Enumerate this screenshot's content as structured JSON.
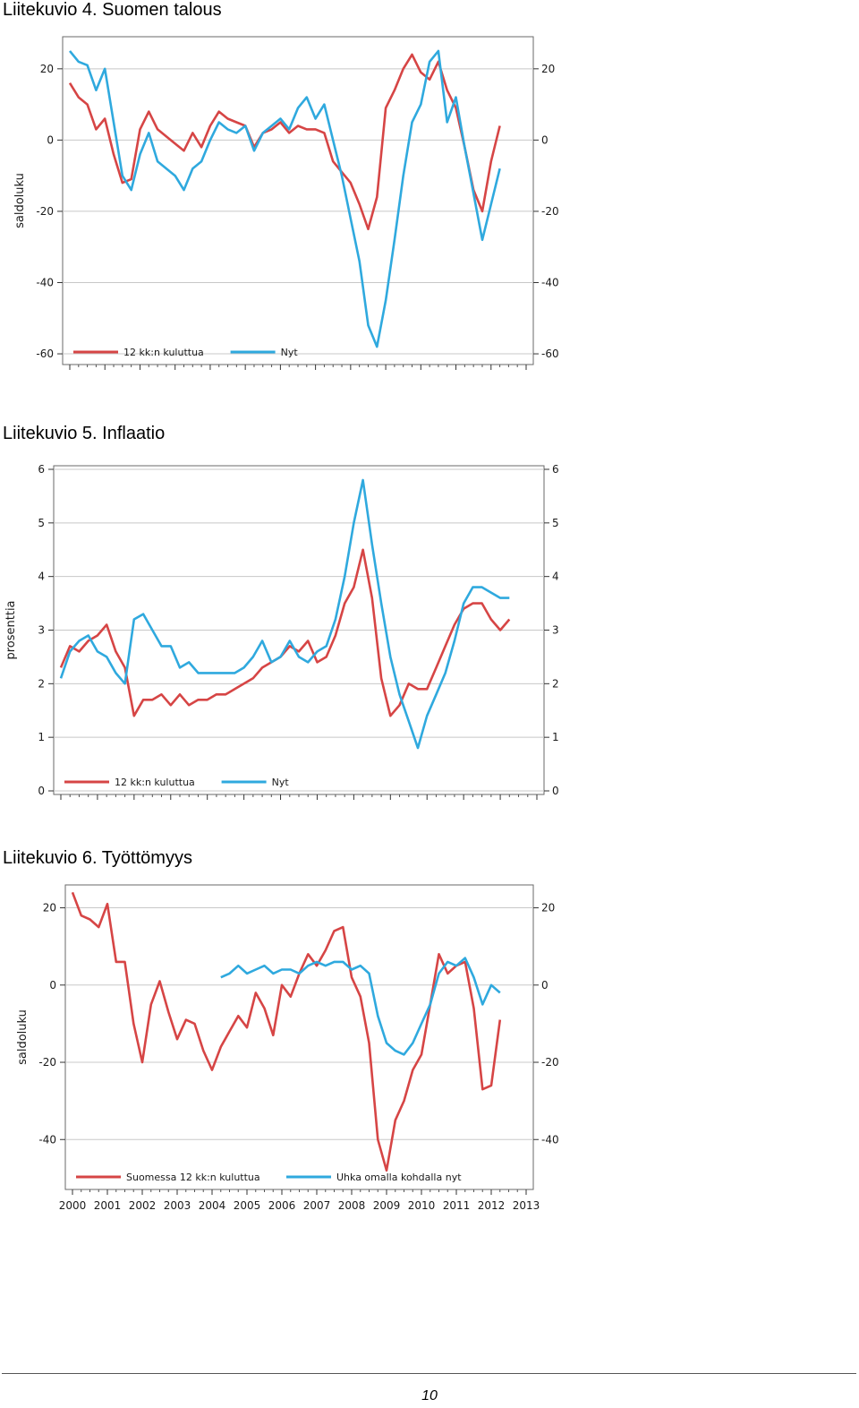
{
  "chart_data": [
    {
      "type": "line",
      "title": "Liitekuvio 4. Suomen talous",
      "ylabel": "saldoluku",
      "ylim": [
        -62,
        28
      ],
      "yticks": [
        20,
        0,
        -20,
        -40,
        -60
      ],
      "xlim": [
        2000,
        2013
      ],
      "xticks": [
        "2000",
        "2001",
        "2002",
        "2003",
        "2004",
        "2005",
        "2006",
        "2007",
        "2008",
        "2009",
        "2010",
        "2011",
        "2012",
        "2013"
      ],
      "grid": true,
      "legend": "bottom-left",
      "series": [
        {
          "name": "12 kk:n kuluttua",
          "color": "#d64545",
          "x": [
            2000.0,
            2000.25,
            2000.5,
            2000.75,
            2001.0,
            2001.25,
            2001.5,
            2001.75,
            2002.0,
            2002.25,
            2002.5,
            2002.75,
            2003.0,
            2003.25,
            2003.5,
            2003.75,
            2004.0,
            2004.25,
            2004.5,
            2004.75,
            2005.0,
            2005.25,
            2005.5,
            2005.75,
            2006.0,
            2006.25,
            2006.5,
            2006.75,
            2007.0,
            2007.25,
            2007.5,
            2007.75,
            2008.0,
            2008.25,
            2008.5,
            2008.75,
            2009.0,
            2009.25,
            2009.5,
            2009.75,
            2010.0,
            2010.25,
            2010.5,
            2010.75,
            2011.0,
            2011.25,
            2011.5,
            2011.75,
            2012.0,
            2012.25
          ],
          "y": [
            16,
            12,
            10,
            3,
            6,
            -4,
            -12,
            -11,
            3,
            8,
            3,
            1,
            -1,
            -3,
            2,
            -2,
            4,
            8,
            6,
            5,
            4,
            -2,
            2,
            3,
            5,
            2,
            4,
            3,
            3,
            2,
            -6,
            -9,
            -12,
            -18,
            -25,
            -16,
            9,
            14,
            20,
            24,
            19,
            17,
            22,
            14,
            9,
            -2,
            -14,
            -20,
            -6,
            4
          ]
        },
        {
          "name": "Nyt",
          "color": "#2fa9de",
          "x": [
            2000.0,
            2000.25,
            2000.5,
            2000.75,
            2001.0,
            2001.25,
            2001.5,
            2001.75,
            2002.0,
            2002.25,
            2002.5,
            2002.75,
            2003.0,
            2003.25,
            2003.5,
            2003.75,
            2004.0,
            2004.25,
            2004.5,
            2004.75,
            2005.0,
            2005.25,
            2005.5,
            2005.75,
            2006.0,
            2006.25,
            2006.5,
            2006.75,
            2007.0,
            2007.25,
            2007.5,
            2007.75,
            2008.0,
            2008.25,
            2008.5,
            2008.75,
            2009.0,
            2009.25,
            2009.5,
            2009.75,
            2010.0,
            2010.25,
            2010.5,
            2010.75,
            2011.0,
            2011.25,
            2011.5,
            2011.75,
            2012.0,
            2012.25
          ],
          "y": [
            25,
            22,
            21,
            14,
            20,
            5,
            -10,
            -14,
            -4,
            2,
            -6,
            -8,
            -10,
            -14,
            -8,
            -6,
            0,
            5,
            3,
            2,
            4,
            -3,
            2,
            4,
            6,
            3,
            9,
            12,
            6,
            10,
            0,
            -10,
            -22,
            -34,
            -52,
            -58,
            -45,
            -28,
            -10,
            5,
            10,
            22,
            25,
            5,
            12,
            -2,
            -15,
            -28,
            -18,
            -8
          ]
        }
      ]
    },
    {
      "type": "line",
      "title": "Liitekuvio 5. Inflaatio",
      "ylabel": "prosenttia",
      "ylim": [
        0,
        6
      ],
      "yticks": [
        6,
        5,
        4,
        3,
        2,
        1,
        0
      ],
      "xlim": [
        2000,
        2013
      ],
      "xticks": [
        "2000",
        "2001",
        "2002",
        "2003",
        "2004",
        "2005",
        "2006",
        "2007",
        "2008",
        "2009",
        "2010",
        "2011",
        "2012",
        "2013"
      ],
      "grid": true,
      "legend": "bottom-left",
      "series": [
        {
          "name": "12 kk:n kuluttua",
          "color": "#d64545",
          "x": [
            2000.0,
            2000.25,
            2000.5,
            2000.75,
            2001.0,
            2001.25,
            2001.5,
            2001.75,
            2002.0,
            2002.25,
            2002.5,
            2002.75,
            2003.0,
            2003.25,
            2003.5,
            2003.75,
            2004.0,
            2004.25,
            2004.5,
            2004.75,
            2005.0,
            2005.25,
            2005.5,
            2005.75,
            2006.0,
            2006.25,
            2006.5,
            2006.75,
            2007.0,
            2007.25,
            2007.5,
            2007.75,
            2008.0,
            2008.25,
            2008.5,
            2008.75,
            2009.0,
            2009.25,
            2009.5,
            2009.75,
            2010.0,
            2010.25,
            2010.5,
            2010.75,
            2011.0,
            2011.25,
            2011.5,
            2011.75,
            2012.0,
            2012.25
          ],
          "y": [
            2.3,
            2.7,
            2.6,
            2.8,
            2.9,
            3.1,
            2.6,
            2.3,
            1.4,
            1.7,
            1.7,
            1.8,
            1.6,
            1.8,
            1.6,
            1.7,
            1.7,
            1.8,
            1.8,
            1.9,
            2.0,
            2.1,
            2.3,
            2.4,
            2.5,
            2.7,
            2.6,
            2.8,
            2.4,
            2.5,
            2.9,
            3.5,
            3.8,
            4.5,
            3.6,
            2.1,
            1.4,
            1.6,
            2.0,
            1.9,
            1.9,
            2.3,
            2.7,
            3.1,
            3.4,
            3.5,
            3.5,
            3.2,
            3.0,
            3.2
          ]
        },
        {
          "name": "Nyt",
          "color": "#2fa9de",
          "x": [
            2000.0,
            2000.25,
            2000.5,
            2000.75,
            2001.0,
            2001.25,
            2001.5,
            2001.75,
            2002.0,
            2002.25,
            2002.5,
            2002.75,
            2003.0,
            2003.25,
            2003.5,
            2003.75,
            2004.0,
            2004.25,
            2004.5,
            2004.75,
            2005.0,
            2005.25,
            2005.5,
            2005.75,
            2006.0,
            2006.25,
            2006.5,
            2006.75,
            2007.0,
            2007.25,
            2007.5,
            2007.75,
            2008.0,
            2008.25,
            2008.5,
            2008.75,
            2009.0,
            2009.25,
            2009.5,
            2009.75,
            2010.0,
            2010.25,
            2010.5,
            2010.75,
            2011.0,
            2011.25,
            2011.5,
            2011.75,
            2012.0,
            2012.25
          ],
          "y": [
            2.1,
            2.6,
            2.8,
            2.9,
            2.6,
            2.5,
            2.2,
            2.0,
            3.2,
            3.3,
            3.0,
            2.7,
            2.7,
            2.3,
            2.4,
            2.2,
            2.2,
            2.2,
            2.2,
            2.2,
            2.3,
            2.5,
            2.8,
            2.4,
            2.5,
            2.8,
            2.5,
            2.4,
            2.6,
            2.7,
            3.2,
            4.0,
            5.0,
            5.8,
            4.6,
            3.5,
            2.5,
            1.8,
            1.3,
            0.8,
            1.4,
            1.8,
            2.2,
            2.8,
            3.5,
            3.8,
            3.8,
            3.7,
            3.6,
            3.6
          ]
        }
      ]
    },
    {
      "type": "line",
      "title": "Liitekuvio 6. Työttömyys",
      "ylabel": "saldoluku",
      "ylim": [
        -52,
        25
      ],
      "yticks": [
        20,
        0,
        -20,
        -40
      ],
      "xlim": [
        2000,
        2013
      ],
      "xticks": [
        "2000",
        "2001",
        "2002",
        "2003",
        "2004",
        "2005",
        "2006",
        "2007",
        "2008",
        "2009",
        "2010",
        "2011",
        "2012",
        "2013"
      ],
      "grid": true,
      "legend": "bottom-left",
      "series": [
        {
          "name": "Suomessa 12 kk:n kuluttua",
          "color": "#d64545",
          "x": [
            2000.0,
            2000.25,
            2000.5,
            2000.75,
            2001.0,
            2001.25,
            2001.5,
            2001.75,
            2002.0,
            2002.25,
            2002.5,
            2002.75,
            2003.0,
            2003.25,
            2003.5,
            2003.75,
            2004.0,
            2004.25,
            2004.5,
            2004.75,
            2005.0,
            2005.25,
            2005.5,
            2005.75,
            2006.0,
            2006.25,
            2006.5,
            2006.75,
            2007.0,
            2007.25,
            2007.5,
            2007.75,
            2008.0,
            2008.25,
            2008.5,
            2008.75,
            2009.0,
            2009.25,
            2009.5,
            2009.75,
            2010.0,
            2010.25,
            2010.5,
            2010.75,
            2011.0,
            2011.25,
            2011.5,
            2011.75,
            2012.0,
            2012.25
          ],
          "y": [
            24,
            18,
            17,
            15,
            21,
            6,
            6,
            -10,
            -20,
            -5,
            1,
            -7,
            -14,
            -9,
            -10,
            -17,
            -22,
            -16,
            -12,
            -8,
            -11,
            -2,
            -6,
            -13,
            0,
            -3,
            3,
            8,
            5,
            9,
            14,
            15,
            2,
            -3,
            -15,
            -40,
            -48,
            -35,
            -30,
            -22,
            -18,
            -5,
            8,
            3,
            5,
            6,
            -6,
            -27,
            -26,
            -9
          ]
        },
        {
          "name": "Uhka omalla kohdalla nyt",
          "color": "#2fa9de",
          "x": [
            2004.25,
            2004.5,
            2004.75,
            2005.0,
            2005.25,
            2005.5,
            2005.75,
            2006.0,
            2006.25,
            2006.5,
            2006.75,
            2007.0,
            2007.25,
            2007.5,
            2007.75,
            2008.0,
            2008.25,
            2008.5,
            2008.75,
            2009.0,
            2009.25,
            2009.5,
            2009.75,
            2010.0,
            2010.25,
            2010.5,
            2010.75,
            2011.0,
            2011.25,
            2011.5,
            2011.75,
            2012.0,
            2012.25
          ],
          "y": [
            2,
            3,
            5,
            3,
            4,
            5,
            3,
            4,
            4,
            3,
            5,
            6,
            5,
            6,
            6,
            4,
            5,
            3,
            -8,
            -15,
            -17,
            -18,
            -15,
            -10,
            -5,
            3,
            6,
            5,
            7,
            2,
            -5,
            0,
            -2
          ]
        }
      ]
    }
  ],
  "footer": {
    "page_number": "10"
  }
}
